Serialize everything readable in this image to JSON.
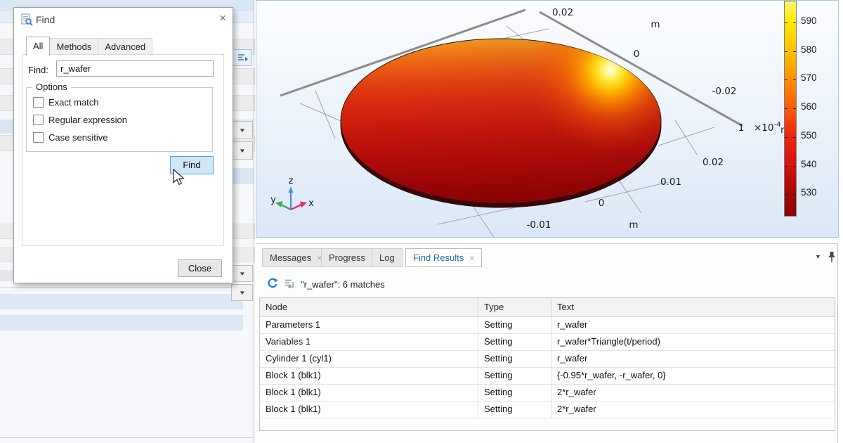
{
  "icons": {
    "close": "×",
    "dropdown": "▼",
    "caret": "▼"
  },
  "find_dialog": {
    "title": "Find",
    "tabs": [
      {
        "label": "All",
        "active": true
      },
      {
        "label": "Methods"
      },
      {
        "label": "Advanced"
      }
    ],
    "find_label": "Find:",
    "find_value": "r_wafer",
    "options_label": "Options",
    "options": [
      "Exact match",
      "Regular expression",
      "Case sensitive"
    ],
    "find_button": "Find",
    "close_button": "Close"
  },
  "graphics": {
    "axes": {
      "y": {
        "ticks": [
          "0.02",
          "0",
          "-0.02"
        ],
        "unit": "m"
      },
      "x": {
        "ticks": [
          "0.02",
          "0.01",
          "0",
          "-0.01"
        ],
        "unit": "m"
      },
      "z": {
        "tick": "1",
        "scale_base": "×10",
        "scale_exp": "-4",
        "unit": "m"
      }
    },
    "triad": {
      "z": "z",
      "y": "y",
      "x": "x"
    },
    "colorbar": {
      "labels": [
        "590",
        "580",
        "570",
        "560",
        "550",
        "540",
        "530"
      ]
    },
    "colors": {
      "hot": "#ffef6a",
      "mid": "#e03413",
      "cold": "#8a0404"
    }
  },
  "bottom_panel": {
    "tabs": [
      {
        "label": "Messages",
        "closable": true
      },
      {
        "label": "Progress"
      },
      {
        "label": "Log"
      },
      {
        "label": "Find Results",
        "closable": true,
        "active": true
      }
    ],
    "status": "\"r_wafer\": 6 matches",
    "table": {
      "columns": [
        "Node",
        "Type",
        "Text"
      ],
      "rows": [
        {
          "node": "Parameters 1",
          "type": "Setting",
          "text": "r_wafer"
        },
        {
          "node": "Variables 1",
          "type": "Setting",
          "text": "r_wafer*Triangle(t/period)"
        },
        {
          "node": "Cylinder 1 (cyl1)",
          "type": "Setting",
          "text": "r_wafer"
        },
        {
          "node": "Block 1 (blk1)",
          "type": "Setting",
          "text": "{-0.95*r_wafer, -r_wafer, 0}"
        },
        {
          "node": "Block 1 (blk1)",
          "type": "Setting",
          "text": "2*r_wafer"
        },
        {
          "node": "Block 1 (blk1)",
          "type": "Setting",
          "text": "2*r_wafer"
        }
      ]
    }
  }
}
